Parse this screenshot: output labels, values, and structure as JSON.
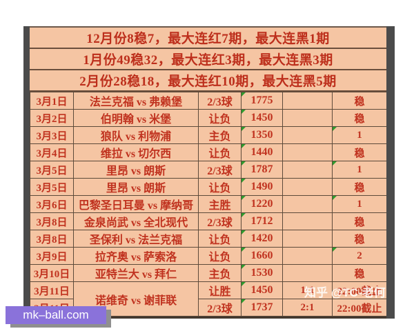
{
  "summary_rows": [
    {
      "text": "12月份8稳7，最大连红7期，最大连黑1期"
    },
    {
      "text": "1月份49稳32，最大连红3期，最大连黑3期"
    },
    {
      "text": "2月份28稳18，最大连红10期，最大连黑5期"
    }
  ],
  "table": {
    "rows": [
      {
        "date": "3月1日",
        "match": "法兰克福 vs 弗赖堡",
        "bet": "2/3球",
        "odds": "1775",
        "ratio": "",
        "status": "稳"
      },
      {
        "date": "3月2日",
        "match": "伯明翰 vs 米堡",
        "bet": "让负",
        "odds": "1450",
        "ratio": "",
        "status": "稳"
      },
      {
        "date": "3月3日",
        "match": "狼队 vs 利物浦",
        "bet": "主负",
        "odds": "1350",
        "ratio": "",
        "status": "1"
      },
      {
        "date": "3月4日",
        "match": "维拉 vs 切尔西",
        "bet": "让负",
        "odds": "1440",
        "ratio": "",
        "status": "稳"
      },
      {
        "date": "3月5日",
        "match": "里昂 vs 朗斯",
        "bet": "2/3球",
        "odds": "1787",
        "ratio": "",
        "status": "1"
      },
      {
        "date": "3月5日",
        "match": "里昂 vs 朗斯",
        "bet": "让负",
        "odds": "1490",
        "ratio": "",
        "status": "稳"
      },
      {
        "date": "3月6日",
        "match": "巴黎圣日耳曼 vs 摩纳哥",
        "bet": "主胜",
        "odds": "1220",
        "ratio": "",
        "status": "1"
      },
      {
        "date": "3月8日",
        "match": "金泉尚武 vs 全北现代",
        "bet": "2/3球",
        "odds": "1712",
        "ratio": "",
        "status": "稳"
      },
      {
        "date": "3月8日",
        "match": "圣保利 vs 法兰克福",
        "bet": "让负",
        "odds": "1420",
        "ratio": "",
        "status": "稳"
      },
      {
        "date": "3月9日",
        "match": "拉齐奥 vs 萨索洛",
        "bet": "让负",
        "odds": "1660",
        "ratio": "",
        "status": "2"
      },
      {
        "date": "3月10日",
        "match": "亚特兰大 vs 拜仁",
        "bet": "主负",
        "odds": "1530",
        "ratio": "",
        "status": "稳"
      },
      {
        "date": "3月11日",
        "match": "诺维奇 vs 谢菲联",
        "match_rowspan": 2,
        "bet": "让胜",
        "odds": "1450",
        "ratio": "1:1",
        "status": "22:00截止"
      },
      {
        "date": "3月11日",
        "match": null,
        "bet": "2/3球",
        "odds": "1737",
        "ratio": "2:1",
        "status": "22:00截止"
      }
    ]
  },
  "badge": {
    "label": "mk–ball.com",
    "background": "#8a72da"
  },
  "watermark": {
    "text": "知乎 @TC-老何"
  },
  "colors": {
    "text_red": "#c0321f",
    "cell_bg": "#f5c5a3",
    "frame_bar": "#4b4b4b",
    "marker_green": "#2e9b2e",
    "badge_purple": "#8a72da"
  }
}
